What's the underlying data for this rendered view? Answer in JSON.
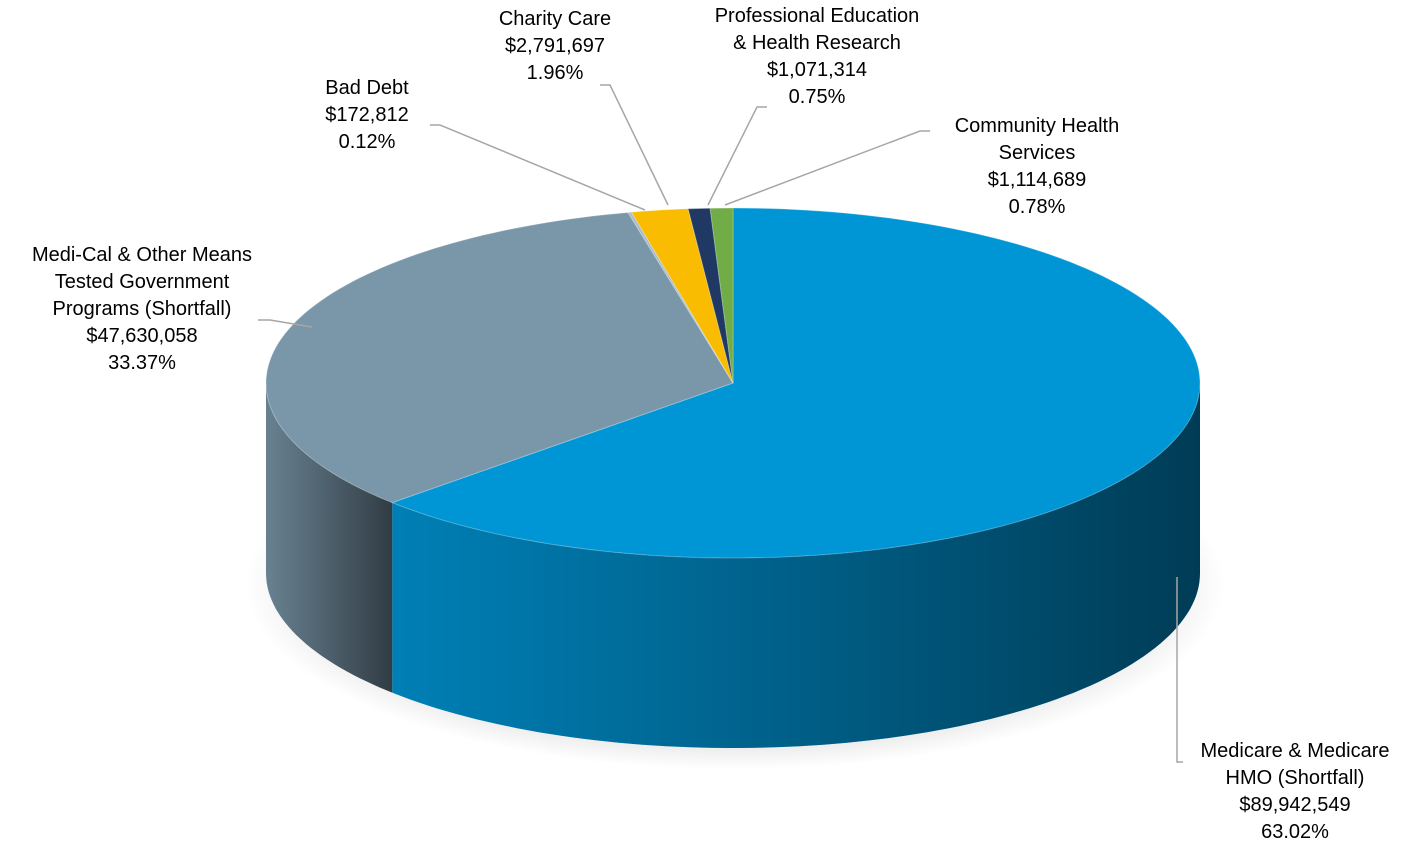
{
  "chart_data": {
    "type": "pie3d",
    "categories": [
      [
        "Medicare & Medicare",
        "HMO (Shortfall)"
      ],
      [
        "Medi-Cal & Other Means",
        "Tested Government",
        "Programs (Shortfall)"
      ],
      [
        "Bad Debt"
      ],
      [
        "Charity Care"
      ],
      [
        "Professional Education",
        "& Health Research"
      ],
      [
        "Community Health",
        "Services"
      ]
    ],
    "values": [
      89942549,
      47630058,
      172812,
      2791697,
      1071314,
      1114689
    ],
    "value_labels": [
      "$89,942,549",
      "$47,630,058",
      "$172,812",
      "$2,791,697",
      "$1,071,314",
      "$1,114,689"
    ],
    "percentages": [
      63.02,
      33.37,
      0.12,
      1.96,
      0.75,
      0.78
    ],
    "percentage_labels": [
      "63.02%",
      "33.37%",
      "0.12%",
      "1.96%",
      "0.75%",
      "0.78%"
    ],
    "colors": [
      "#0096d6",
      "#7a97aa",
      "#a9bccb",
      "#f9bc00",
      "#1f3864",
      "#70ad47"
    ]
  }
}
